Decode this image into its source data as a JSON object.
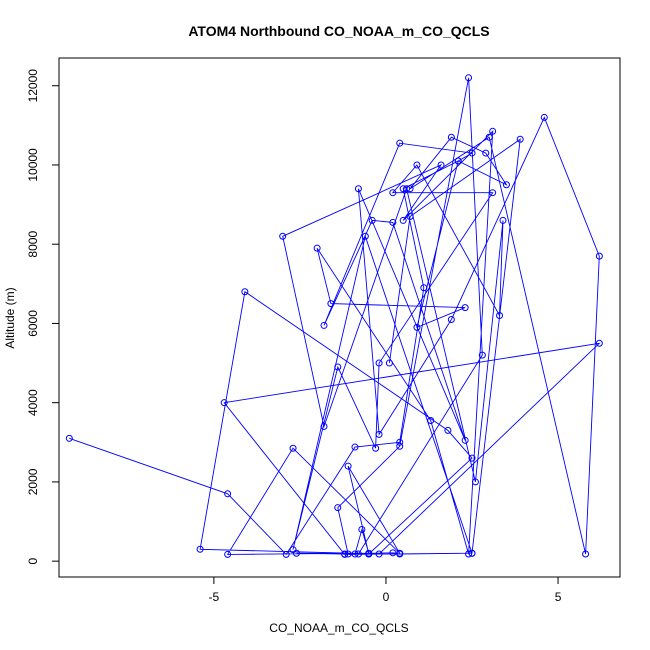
{
  "chart_data": {
    "type": "line",
    "title": "ATOM4 Northbound CO_NOAA_m_CO_QCLS",
    "xlabel": "CO_NOAA_m_CO_QCLS",
    "ylabel": "Altitude (m)",
    "xlim": [
      -9.5,
      6.8
    ],
    "ylim": [
      -400,
      12700
    ],
    "x_ticks": [
      -5,
      0,
      5
    ],
    "y_ticks": [
      0,
      2000,
      4000,
      6000,
      8000,
      10000,
      12000
    ],
    "grid": false,
    "markers": "open-circle",
    "color": "#0000ff",
    "series": [
      {
        "x": [
          -9.2,
          -4.6,
          -2.9,
          -0.9,
          0.4,
          1.1,
          0.5,
          2.1,
          2.5,
          0.4,
          -1.8,
          -0.4,
          0.2,
          2.3,
          -0.8,
          -0.2,
          1.9,
          4.6,
          6.2,
          5.8,
          3.0,
          0.7,
          1.9,
          2.9,
          3.5,
          2.1,
          0.9,
          2.3,
          -1.6,
          -2.0,
          1.3,
          2.4,
          3.1,
          0.5,
          1.6,
          -3.0,
          -1.8,
          0.6,
          2.6,
          3.4,
          3.3,
          0.9,
          0.2,
          3.1,
          -0.2,
          -0.3,
          -1.4,
          -2.7,
          -0.6,
          2.5,
          -1.2,
          -4.7,
          6.2,
          -0.2,
          -5.4,
          -4.1,
          1.8,
          2.5,
          -0.5,
          -1.1,
          0.4,
          -2.7,
          -4.6,
          -0.5,
          -0.7,
          -0.9,
          -1.1,
          -1.4,
          0.4,
          2.4,
          2.8,
          -0.8,
          -0.5,
          -2.6,
          -1.2,
          0.2,
          0.4,
          2.5,
          3.9,
          0.7,
          0.1
        ],
        "y": [
          3100,
          1700,
          170,
          2880,
          3000,
          6900,
          9400,
          10100,
          10300,
          10550,
          5950,
          8600,
          8550,
          3050,
          9400,
          3200,
          6100,
          11200,
          7700,
          180,
          10700,
          9400,
          10700,
          10300,
          9500,
          10100,
          5900,
          6400,
          6500,
          7900,
          3550,
          180,
          10850,
          8600,
          10000,
          8200,
          3400,
          9400,
          2000,
          8600,
          6200,
          10000,
          9300,
          9300,
          5000,
          2850,
          4900,
          290,
          8200,
          200,
          170,
          4000,
          5500,
          180,
          300,
          6800,
          3300,
          2600,
          180,
          2400,
          200,
          2850,
          170,
          200,
          800,
          180,
          180,
          1350,
          2900,
          12200,
          5200,
          180,
          180,
          200,
          180,
          210,
          180,
          200,
          10650,
          8700,
          5000
        ]
      }
    ]
  }
}
